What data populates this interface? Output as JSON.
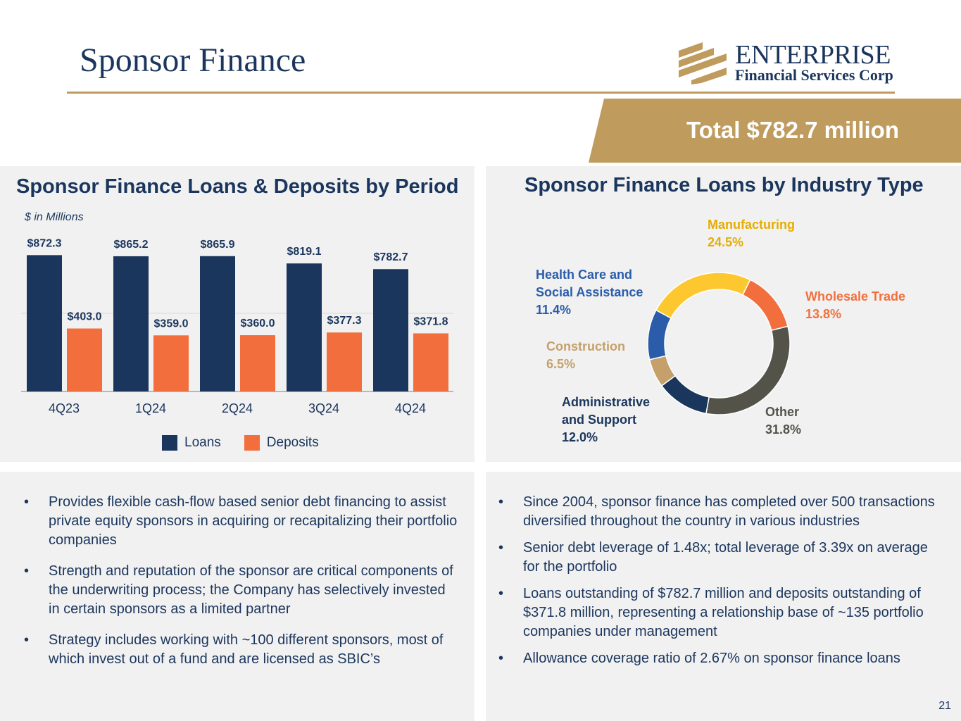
{
  "header": {
    "title": "Sponsor Finance",
    "logo_name": "ENTERPRISE",
    "logo_sub": "Financial Services Corp",
    "total": "Total $782.7 million"
  },
  "colors": {
    "navy": "#1b365d",
    "gold": "#bf9b5e",
    "orange": "#f26f3d",
    "panel": "#f1f1f1"
  },
  "chart_data": [
    {
      "type": "bar",
      "title": "Sponsor Finance Loans & Deposits by Period",
      "units_note": "$ in Millions",
      "categories": [
        "4Q23",
        "1Q24",
        "2Q24",
        "3Q24",
        "4Q24"
      ],
      "series": [
        {
          "name": "Loans",
          "color": "#1b365d",
          "values": [
            872.3,
            865.2,
            865.9,
            819.1,
            782.7
          ],
          "labels": [
            "$872.3",
            "$865.2",
            "$865.9",
            "$819.1",
            "$782.7"
          ]
        },
        {
          "name": "Deposits",
          "color": "#f26f3d",
          "values": [
            403.0,
            359.0,
            360.0,
            377.3,
            371.8
          ],
          "labels": [
            "$403.0",
            "$359.0",
            "$360.0",
            "$377.3",
            "$371.8"
          ]
        }
      ],
      "ylim": [
        0,
        1000
      ],
      "grid": true,
      "legend": "bottom-center"
    },
    {
      "type": "pie",
      "title": "Sponsor Finance Loans by Industry Type",
      "slices": [
        {
          "label": "Manufacturing",
          "pct_label": "24.5%",
          "value": 24.5,
          "color": "#fdc82f"
        },
        {
          "label": "Wholesale Trade",
          "pct_label": "13.8%",
          "value": 13.8,
          "color": "#f26f3d"
        },
        {
          "label": "Other",
          "pct_label": "31.8%",
          "value": 31.8,
          "color": "#54534a"
        },
        {
          "label": "Administrative and Support",
          "pct_label": "12.0%",
          "value": 12.0,
          "color": "#1b365d"
        },
        {
          "label": "Construction",
          "pct_label": "6.5%",
          "value": 6.5,
          "color": "#c5a06a"
        },
        {
          "label": "Health Care and Social Assistance",
          "pct_label": "11.4%",
          "value": 11.4,
          "color": "#2a5caa"
        }
      ]
    }
  ],
  "left_bullets": [
    "Provides flexible cash-flow based senior debt financing to assist private equity sponsors in acquiring or recapitalizing their portfolio companies",
    "Strength and reputation of the sponsor are critical components of the underwriting process; the Company has selectively invested in certain sponsors as a limited partner",
    "Strategy includes working with ~100 different sponsors, most of which invest out of a fund and are licensed as SBIC’s"
  ],
  "right_bullets": [
    "Since 2004, sponsor finance has completed over 500 transactions diversified throughout the country in various industries",
    "Senior debt leverage of 1.48x; total leverage of 3.39x on average for the portfolio",
    "Loans outstanding of $782.7 million and deposits outstanding of $371.8 million, representing a relationship base of ~135 portfolio companies under management",
    "Allowance coverage ratio of 2.67% on sponsor finance loans"
  ],
  "bullet_char": "•",
  "page_number": "21"
}
